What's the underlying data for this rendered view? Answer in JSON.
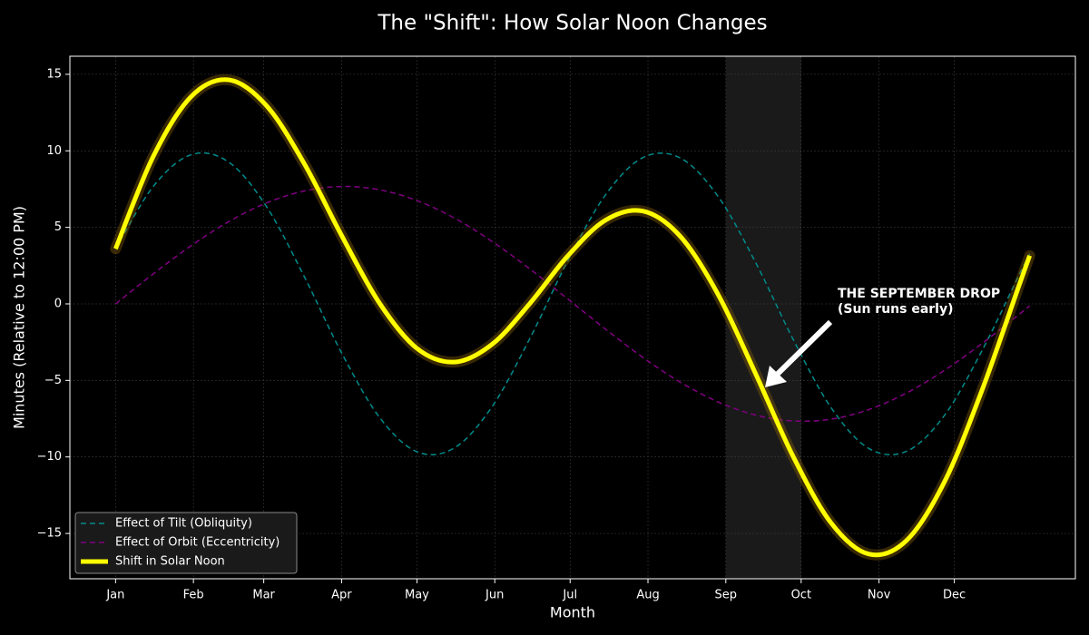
{
  "chart_data": {
    "type": "line",
    "title": "The \"Shift\": How Solar Noon Changes",
    "x_label": "Month",
    "y_label": "Minutes (Relative to 12:00 PM)",
    "x": [
      1,
      16,
      31,
      46,
      61,
      76,
      91,
      106,
      121,
      136,
      151,
      166,
      181,
      196,
      211,
      226,
      241,
      256,
      271,
      286,
      301,
      316,
      331,
      346,
      361,
      365
    ],
    "series": [
      {
        "name": "Effect of Tilt (Obliquity)",
        "color": "#008b8b",
        "style": "dashed",
        "values": [
          3.6,
          7.67,
          9.74,
          9.27,
          6.38,
          1.83,
          -3.2,
          -7.39,
          -9.66,
          -9.4,
          -6.7,
          -2.25,
          2.79,
          7.1,
          9.56,
          9.52,
          7.0,
          2.66,
          -2.38,
          -6.8,
          -9.45,
          -9.63,
          -7.3,
          -3.06,
          1.97,
          3.28
        ]
      },
      {
        "name": "Effect of Orbit (Eccentricity)",
        "color": "#800080",
        "style": "dashed",
        "values": [
          0,
          1.96,
          3.79,
          5.37,
          6.59,
          7.37,
          7.67,
          7.46,
          6.75,
          5.6,
          4.07,
          2.28,
          0.33,
          -1.64,
          -3.5,
          -5.13,
          -6.41,
          -7.27,
          -7.65,
          -7.53,
          -6.9,
          -5.82,
          -4.35,
          -2.59,
          -0.66,
          -0.13
        ]
      },
      {
        "name": "Shift in Solar Noon",
        "color": "#ffff00",
        "style": "solid",
        "values": [
          3.6,
          9.63,
          13.53,
          14.64,
          12.97,
          9.2,
          4.47,
          0.07,
          -2.91,
          -3.8,
          -2.63,
          0.03,
          3.12,
          5.46,
          6.06,
          4.39,
          0.59,
          -4.61,
          -10.03,
          -14.33,
          -16.35,
          -15.45,
          -11.65,
          -5.65,
          1.31,
          3.15
        ]
      }
    ],
    "xlim": [
      -17.2,
      383.2
    ],
    "ylim": [
      -17.96,
      16.18
    ],
    "xticks": [
      {
        "value": 1,
        "label": "Jan"
      },
      {
        "value": 32,
        "label": "Feb"
      },
      {
        "value": 60,
        "label": "Mar"
      },
      {
        "value": 91,
        "label": "Apr"
      },
      {
        "value": 121,
        "label": "May"
      },
      {
        "value": 152,
        "label": "Jun"
      },
      {
        "value": 182,
        "label": "Jul"
      },
      {
        "value": 213,
        "label": "Aug"
      },
      {
        "value": 244,
        "label": "Sep"
      },
      {
        "value": 274,
        "label": "Oct"
      },
      {
        "value": 305,
        "label": "Nov"
      },
      {
        "value": 335,
        "label": "Dec"
      }
    ],
    "yticks": [
      {
        "value": -15,
        "label": "−15"
      },
      {
        "value": -10,
        "label": "−10"
      },
      {
        "value": -5,
        "label": "−5"
      },
      0,
      5,
      10,
      15
    ],
    "highlight_span": [
      244,
      274
    ],
    "annotation": [
      "THE SEPTEMBER DROP",
      "(Sun runs early)"
    ],
    "grid": true,
    "legend": "lower left"
  }
}
